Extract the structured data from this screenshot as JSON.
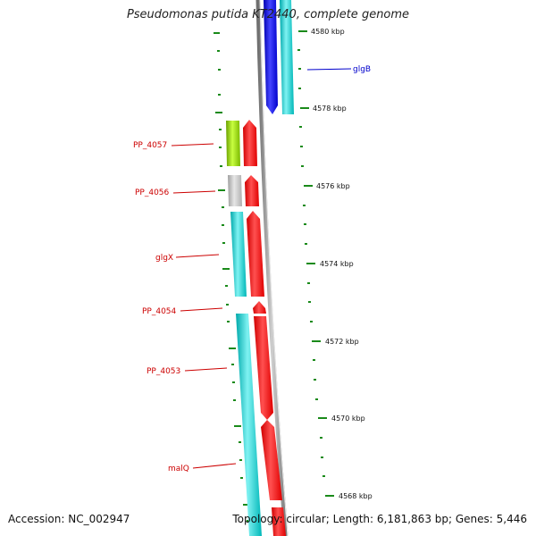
{
  "title": "Pseudomonas putida KT2440, complete genome",
  "footer": {
    "accession": "Accession: NC_002947",
    "summary": "Topology: circular; Length: 6,181,863 bp; Genes: 5,446"
  },
  "colors": {
    "backbone": "#8a8a8a",
    "tick": "#1a8a1a",
    "label_red": "#cc0000",
    "label_blue": "#0000cc",
    "cyan": "#00cfd0",
    "red": "#ff0000",
    "blue": "#0000ee",
    "green": "#9ad400",
    "gray": "#c0c0c0"
  },
  "ticks": [
    "4580 kbp",
    "4578 kbp",
    "4576 kbp",
    "4574 kbp",
    "4572 kbp",
    "4570 kbp",
    "4568 kbp"
  ],
  "genes": [
    {
      "label": "glgB",
      "label_color": "blue"
    },
    {
      "label": "PP_4057",
      "label_color": "red"
    },
    {
      "label": "PP_4056",
      "label_color": "red"
    },
    {
      "label": "glgX",
      "label_color": "red"
    },
    {
      "label": "PP_4054",
      "label_color": "red"
    },
    {
      "label": "PP_4053",
      "label_color": "red"
    },
    {
      "label": "malQ",
      "label_color": "red"
    }
  ]
}
